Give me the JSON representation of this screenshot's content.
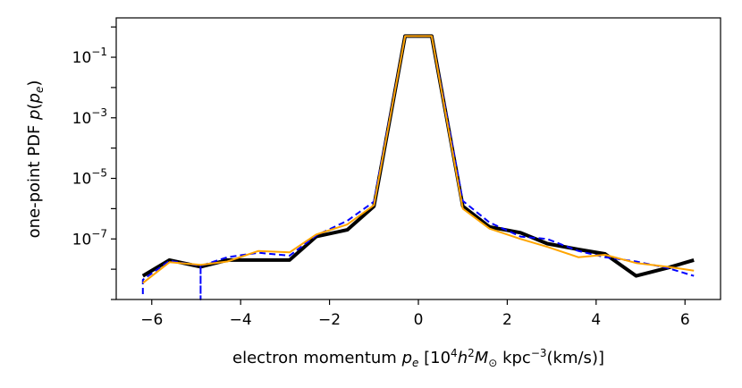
{
  "chart_data": {
    "type": "line",
    "xlabel": "electron momentum p_e [10^4 h^2 M_⊙ kpc^-3 (km/s)]",
    "ylabel": "one-point PDF p(p_e)",
    "xlim": [
      -6.8,
      6.8
    ],
    "ylim_log10": [
      -9.0,
      0.3
    ],
    "yscale": "log",
    "grid": false,
    "legend": "none",
    "xticks": [
      -6,
      -4,
      -2,
      0,
      2,
      4,
      6
    ],
    "xtick_labels": [
      "−6",
      "−4",
      "−2",
      "0",
      "2",
      "4",
      "6"
    ],
    "yticks_exponent": [
      -7,
      -5,
      -3,
      -1
    ],
    "ytick_base": "10",
    "series": [
      {
        "color": "#000000",
        "style": "solid-thick",
        "points": [
          [
            -6.2,
            6e-09
          ],
          [
            -5.6,
            2e-08
          ],
          [
            -4.9,
            1.2e-08
          ],
          [
            -4.3,
            2e-08
          ],
          [
            -3.6,
            2e-08
          ],
          [
            -2.9,
            2e-08
          ],
          [
            -2.3,
            1.2e-07
          ],
          [
            -1.6,
            2e-07
          ],
          [
            -1.0,
            1.2e-06
          ],
          [
            -0.3,
            0.5
          ],
          [
            0.3,
            0.5
          ],
          [
            1.0,
            1.2e-06
          ],
          [
            1.6,
            2.5e-07
          ],
          [
            2.3,
            1.6e-07
          ],
          [
            2.9,
            7e-08
          ],
          [
            3.6,
            4.5e-08
          ],
          [
            4.2,
            3.2e-08
          ],
          [
            4.9,
            6e-09
          ],
          [
            5.6,
            1.1e-08
          ],
          [
            6.2,
            2e-08
          ]
        ]
      },
      {
        "color": "#0000ff",
        "style": "dashed",
        "points": [
          [
            -6.2,
            1.5e-09
          ],
          [
            -6.2,
            4.5e-09
          ],
          [
            -5.6,
            1.9e-08
          ],
          [
            -4.9,
            1.3e-08
          ],
          [
            -4.9,
            1e-09
          ],
          [
            -4.9,
            1.3e-08
          ],
          [
            -4.3,
            2.5e-08
          ],
          [
            -3.6,
            3.5e-08
          ],
          [
            -2.9,
            2.8e-08
          ],
          [
            -2.3,
            1.3e-07
          ],
          [
            -1.6,
            4e-07
          ],
          [
            -1.0,
            1.7e-06
          ],
          [
            -0.3,
            0.5
          ],
          [
            0.3,
            0.5
          ],
          [
            1.0,
            1.8e-06
          ],
          [
            1.6,
            3.5e-07
          ],
          [
            2.3,
            1.2e-07
          ],
          [
            2.9,
            1e-07
          ],
          [
            3.6,
            4e-08
          ],
          [
            4.2,
            2.5e-08
          ],
          [
            4.9,
            1.8e-08
          ],
          [
            5.6,
            1.1e-08
          ],
          [
            6.2,
            6e-09
          ]
        ]
      },
      {
        "color": "#ffa500",
        "style": "solid",
        "points": [
          [
            -6.2,
            3.5e-09
          ],
          [
            -5.6,
            1.7e-08
          ],
          [
            -4.9,
            1.4e-08
          ],
          [
            -4.3,
            1.8e-08
          ],
          [
            -3.6,
            4e-08
          ],
          [
            -2.9,
            3.6e-08
          ],
          [
            -2.3,
            1.4e-07
          ],
          [
            -1.6,
            3e-07
          ],
          [
            -1.0,
            1.3e-06
          ],
          [
            -0.3,
            0.5
          ],
          [
            0.3,
            0.5
          ],
          [
            1.0,
            1e-06
          ],
          [
            1.6,
            2.2e-07
          ],
          [
            2.3,
            1e-07
          ],
          [
            2.9,
            5.5e-08
          ],
          [
            3.6,
            2.5e-08
          ],
          [
            4.2,
            3e-08
          ],
          [
            4.9,
            1.6e-08
          ],
          [
            5.6,
            1.2e-08
          ],
          [
            6.2,
            9e-09
          ]
        ]
      }
    ]
  }
}
